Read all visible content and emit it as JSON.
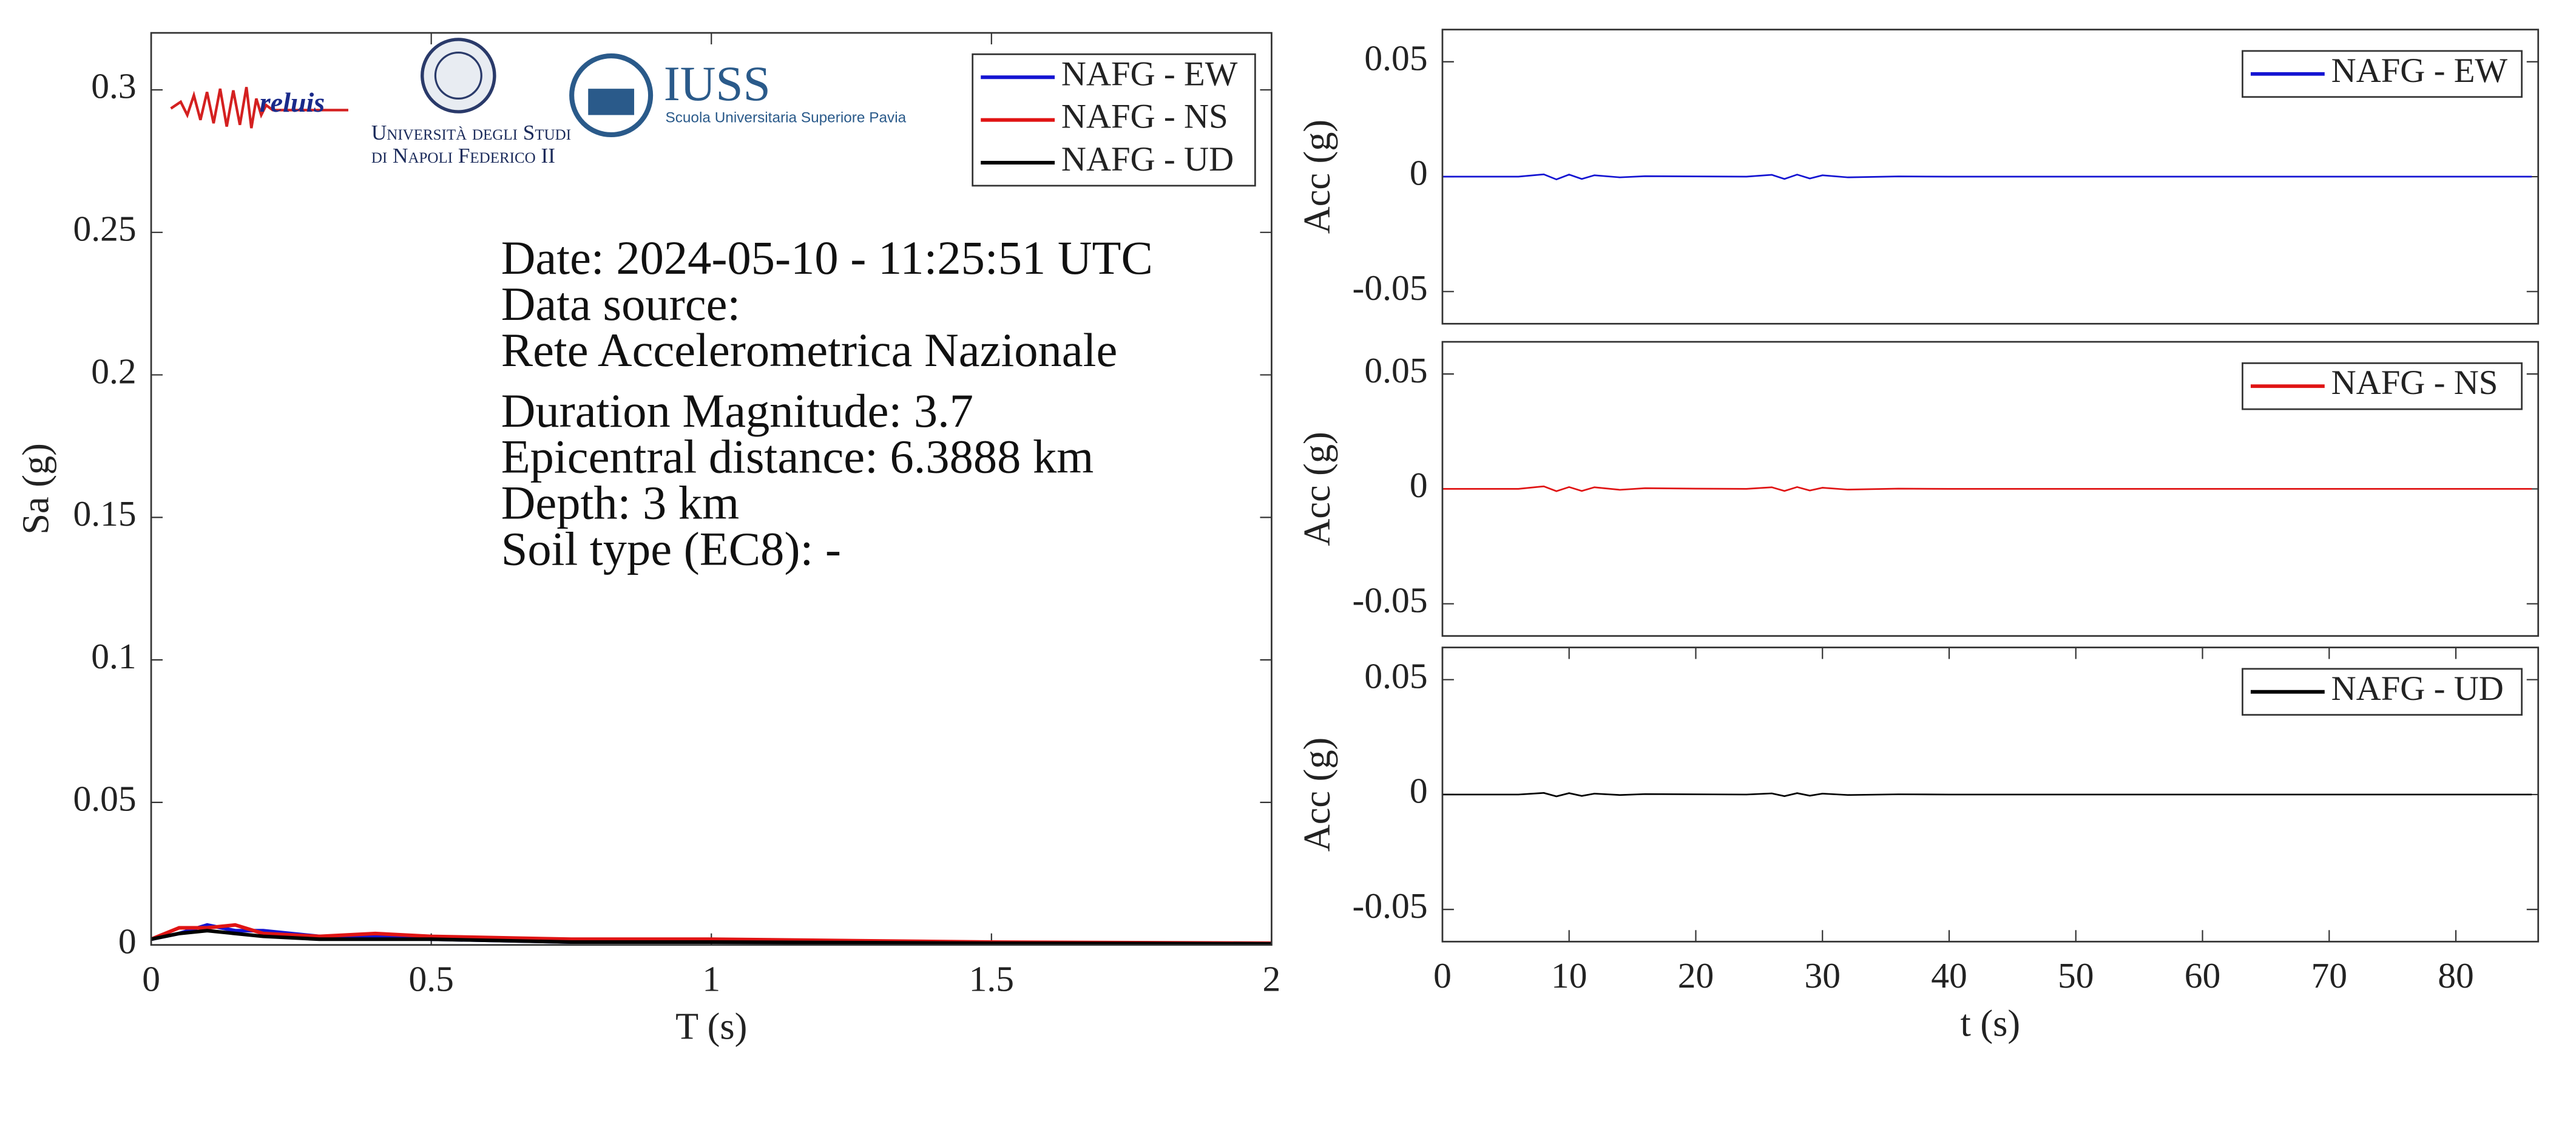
{
  "chart_data": [
    {
      "type": "line",
      "xlabel": "T (s)",
      "ylabel": "Sa (g)",
      "x": [
        0,
        0.05,
        0.1,
        0.15,
        0.2,
        0.3,
        0.4,
        0.5,
        0.75,
        1,
        1.5,
        2
      ],
      "series": [
        {
          "name": "NAFG - EW",
          "color": "#1414d2",
          "values": [
            0.002,
            0.004,
            0.007,
            0.005,
            0.005,
            0.003,
            0.003,
            0.002,
            0.001,
            0.001,
            0.0008,
            0.0005
          ]
        },
        {
          "name": "NAFG - NS",
          "color": "#e01414",
          "values": [
            0.002,
            0.006,
            0.006,
            0.007,
            0.004,
            0.003,
            0.004,
            0.003,
            0.002,
            0.002,
            0.001,
            0.0006
          ]
        },
        {
          "name": "NAFG - UD",
          "color": "#000000",
          "values": [
            0.002,
            0.004,
            0.005,
            0.004,
            0.003,
            0.002,
            0.002,
            0.002,
            0.001,
            0.001,
            0.0006,
            0.0004
          ]
        }
      ],
      "xlim": [
        0,
        2
      ],
      "xticks": [
        0,
        0.5,
        1,
        1.5,
        2
      ],
      "ylim": [
        0,
        0.32
      ],
      "yticks": [
        0,
        0.05,
        0.1,
        0.15,
        0.2,
        0.25,
        0.3
      ],
      "legend": "upper right",
      "annotations": [
        "Date: 2024-05-10 - 11:25:51 UTC",
        "Data source:",
        "Rete Accelerometrica Nazionale",
        "Duration Magnitude: 3.7",
        "Epicentral distance: 6.3888 km",
        "Depth: 3 km",
        "Soil type (EC8): -"
      ]
    },
    {
      "type": "line",
      "ylabel": "Acc (g)",
      "x": [
        0,
        2,
        4,
        6,
        8,
        9,
        10,
        11,
        12,
        14,
        16,
        20,
        24,
        26,
        27,
        28,
        29,
        30,
        32,
        36,
        40,
        50,
        60,
        70,
        80,
        86
      ],
      "series": [
        {
          "name": "NAFG - EW",
          "color": "#1414d2",
          "values": [
            0,
            0,
            0,
            0,
            0.001,
            -0.0012,
            0.0009,
            -0.001,
            0.0006,
            -0.0003,
            0.0002,
            0.0001,
            0,
            0.0008,
            -0.001,
            0.0009,
            -0.0008,
            0.0006,
            -0.0003,
            0.0001,
            0,
            0,
            0,
            0,
            0,
            0
          ]
        }
      ],
      "xlim": [
        0,
        86.5
      ],
      "ylim": [
        -0.064,
        0.064
      ],
      "yticks": [
        -0.05,
        0,
        0.05
      ],
      "legend": "upper right"
    },
    {
      "type": "line",
      "ylabel": "Acc (g)",
      "x": [
        0,
        2,
        4,
        6,
        8,
        9,
        10,
        11,
        12,
        14,
        16,
        20,
        24,
        26,
        27,
        28,
        29,
        30,
        32,
        36,
        40,
        50,
        60,
        70,
        80,
        86
      ],
      "series": [
        {
          "name": "NAFG - NS",
          "color": "#e01414",
          "values": [
            0,
            0,
            0,
            0,
            0.0011,
            -0.001,
            0.0008,
            -0.0009,
            0.0007,
            -0.0004,
            0.0003,
            0.0001,
            0,
            0.0007,
            -0.0009,
            0.0008,
            -0.0007,
            0.0005,
            -0.0003,
            0.0001,
            0,
            0,
            0,
            0,
            0,
            0
          ]
        }
      ],
      "xlim": [
        0,
        86.5
      ],
      "ylim": [
        -0.064,
        0.064
      ],
      "yticks": [
        -0.05,
        0,
        0.05
      ],
      "legend": "upper right"
    },
    {
      "type": "line",
      "xlabel": "t (s)",
      "ylabel": "Acc (g)",
      "x": [
        0,
        2,
        4,
        6,
        8,
        9,
        10,
        11,
        12,
        14,
        16,
        20,
        24,
        26,
        27,
        28,
        29,
        30,
        32,
        36,
        40,
        50,
        60,
        70,
        80,
        86
      ],
      "series": [
        {
          "name": "NAFG - UD",
          "color": "#000000",
          "values": [
            0,
            0,
            0,
            0,
            0.0007,
            -0.0008,
            0.0006,
            -0.0006,
            0.0004,
            -0.0002,
            0.0002,
            0.0001,
            0,
            0.0005,
            -0.0007,
            0.0006,
            -0.0005,
            0.0004,
            -0.0002,
            0.0001,
            0,
            0,
            0,
            0,
            0,
            0
          ]
        }
      ],
      "xlim": [
        0,
        86.5
      ],
      "xticks": [
        0,
        10,
        20,
        30,
        40,
        50,
        60,
        70,
        80
      ],
      "ylim": [
        -0.064,
        0.064
      ],
      "yticks": [
        -0.05,
        0,
        0.05
      ],
      "legend": "upper right"
    }
  ],
  "logos": {
    "reluis": "reluis",
    "unina_line1": "Università degli Studi",
    "unina_line2": "di Napoli Federico II",
    "iuss": "IUSS",
    "iuss_sub": "Scuola Universitaria Superiore Pavia"
  }
}
